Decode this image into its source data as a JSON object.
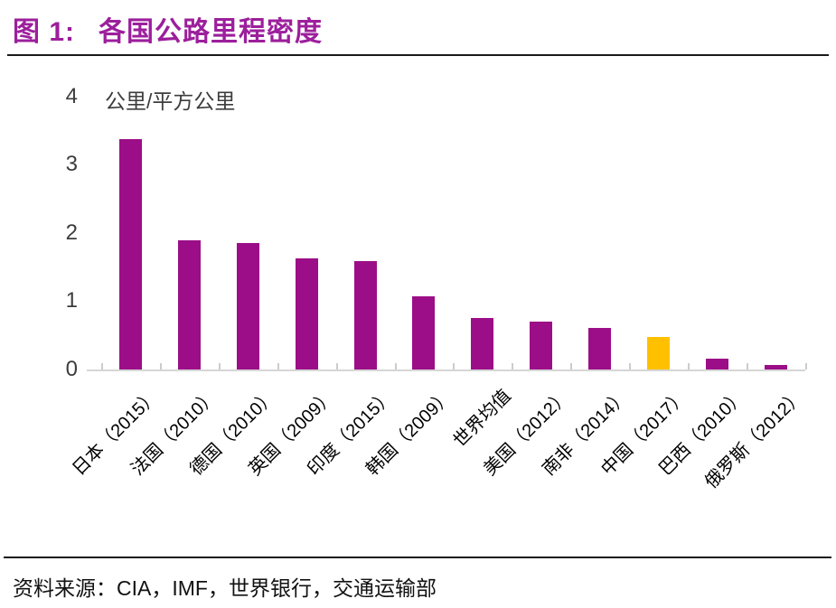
{
  "header": {
    "figure_label": "图 1:",
    "title_text": "各国公路里程密度"
  },
  "footer": {
    "source": "资料来源：CIA，IMF，世界银行，交通运输部"
  },
  "chart_data": {
    "type": "bar",
    "title": "各国公路里程密度",
    "ylabel": "公里/平方公里",
    "xlabel": "",
    "categories": [
      "日本（2015）",
      "法国（2010）",
      "德国（2010）",
      "英国（2009）",
      "印度（2015）",
      "韩国（2009）",
      "世界均值",
      "美国（2012）",
      "南非（2014）",
      "中国（2017）",
      "巴西（2010）",
      "俄罗斯（2012）"
    ],
    "values": [
      3.37,
      1.89,
      1.85,
      1.63,
      1.59,
      1.07,
      0.75,
      0.7,
      0.61,
      0.48,
      0.16,
      0.07
    ],
    "yticks": [
      0,
      1,
      2,
      3,
      4
    ],
    "ylim": [
      0,
      4
    ],
    "grid": false,
    "legend_position": "none",
    "bar_color": "#9C0E87",
    "highlight_index": 9,
    "highlight_color": "#FFC000"
  },
  "colors": {
    "title": "#9C1F9C",
    "rule": "#1a1a1a",
    "axis_line": "#d6d6d6",
    "tick_text": "#3d3d3d"
  }
}
